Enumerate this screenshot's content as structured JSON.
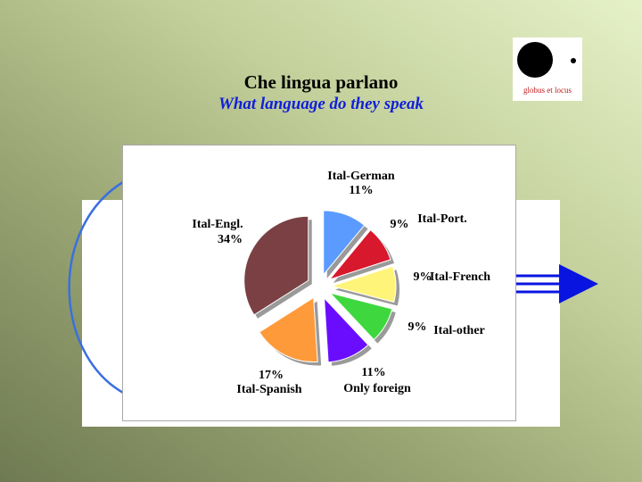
{
  "slide": {
    "title": "Che lingua parlano",
    "subtitle": "What language do they speak"
  },
  "logo": {
    "text": "globus et locus"
  },
  "colors": {
    "subtitle": "#1020d8",
    "arrow": "#0a14e0",
    "arc": "#3a6fe0"
  },
  "chart_data": {
    "type": "pie",
    "title": "",
    "slices": [
      {
        "name": "Ital-German",
        "value": 11,
        "label": "11%",
        "color": "#5b9bff"
      },
      {
        "name": "Ital-Port.",
        "value": 9,
        "label": "9%",
        "color": "#d8182c"
      },
      {
        "name": "Ital-French",
        "value": 9,
        "label": "9%",
        "color": "#fff47a"
      },
      {
        "name": "Ital-other",
        "value": 9,
        "label": "9%",
        "color": "#3ed83e"
      },
      {
        "name": "Only foreign",
        "value": 11,
        "label": "11%",
        "color": "#6a0dff"
      },
      {
        "name": "Ital-Spanish",
        "value": 17,
        "label": "17%",
        "color": "#ff9a3a"
      },
      {
        "name": "Ital-Engl.",
        "value": 34,
        "label": "34%",
        "color": "#7a4043"
      }
    ],
    "legend": "none",
    "exploded": true
  }
}
